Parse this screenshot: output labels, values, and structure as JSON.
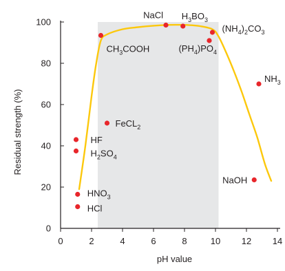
{
  "chart_data": {
    "type": "scatter",
    "xlabel": "pH value",
    "ylabel": "Residual strength (%)",
    "xlim": [
      0,
      14
    ],
    "ylim": [
      0,
      100
    ],
    "xticks": [
      "0",
      "2",
      "4",
      "6",
      "8",
      "10",
      "12",
      "14"
    ],
    "yticks": [
      "0",
      "20",
      "40",
      "60",
      "80",
      "100"
    ],
    "shaded_region": {
      "x_from": 2.4,
      "x_to": 10.2,
      "color": "#e6e7e8"
    },
    "curve_color": "#fcc80c",
    "point_color": "#e8262b",
    "curve": {
      "x": [
        1.2,
        1.6,
        2.0,
        2.3,
        2.6,
        3.0,
        4.0,
        5.0,
        6.0,
        7.0,
        8.0,
        9.0,
        9.8,
        10.2,
        10.7,
        11.2,
        11.7,
        12.2,
        12.7,
        13.2,
        13.6
      ],
      "y": [
        19,
        40,
        64,
        80,
        91,
        94,
        96.5,
        97.5,
        98.2,
        98.6,
        98.6,
        98,
        96.5,
        93,
        85,
        76,
        66,
        55,
        44,
        31,
        23
      ]
    },
    "points": [
      {
        "label": "NaCl",
        "x": 6.8,
        "y": 98.5
      },
      {
        "label": "H3BO3",
        "x": 7.9,
        "y": 98
      },
      {
        "label": "(NH4)2CO3",
        "x": 9.8,
        "y": 95
      },
      {
        "label": "CH3COOH",
        "x": 2.6,
        "y": 93.5
      },
      {
        "label": "(PH4)PO4",
        "x": 9.6,
        "y": 91
      },
      {
        "label": "NH3",
        "x": 12.8,
        "y": 70
      },
      {
        "label": "FeCL2",
        "x": 3.0,
        "y": 51
      },
      {
        "label": "HF",
        "x": 1.0,
        "y": 43
      },
      {
        "label": "H2SO4",
        "x": 1.0,
        "y": 37.5
      },
      {
        "label": "NaOH",
        "x": 12.5,
        "y": 23.5
      },
      {
        "label": "HNO3",
        "x": 1.1,
        "y": 16.5
      },
      {
        "label": "HCl",
        "x": 1.1,
        "y": 10.5
      }
    ]
  }
}
